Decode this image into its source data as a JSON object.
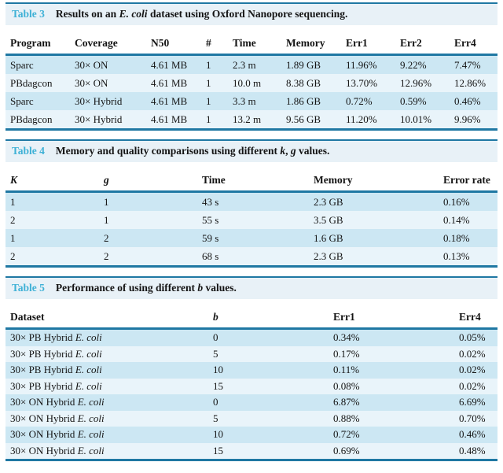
{
  "colors": {
    "accent_cyan": "#3fb1d6",
    "rule_teal": "#1f78a3",
    "row_blue": "#cce7f3",
    "row_pale": "#e9f4fa",
    "caption_band": "#e8f1f7"
  },
  "tables": [
    {
      "label": "Table 3",
      "caption_segments": [
        {
          "t": "Results on an "
        },
        {
          "t": "E. coli",
          "i": true
        },
        {
          "t": " dataset using Oxford Nanopore sequencing."
        }
      ],
      "columns": [
        "Program",
        "Coverage",
        "N50",
        "#",
        "Time",
        "Memory",
        "Err1",
        "Err2",
        "Err4"
      ],
      "rows": [
        [
          "Sparc",
          "30× ON",
          "4.61 MB",
          "1",
          "2.3 m",
          "1.89 GB",
          "11.96%",
          "9.22%",
          "7.47%"
        ],
        [
          "PBdagcon",
          "30× ON",
          "4.61 MB",
          "1",
          "10.0 m",
          "8.38 GB",
          "13.70%",
          "12.96%",
          "12.86%"
        ],
        [
          "Sparc",
          "30× Hybrid",
          "4.61 MB",
          "1",
          "3.3 m",
          "1.86 GB",
          "0.72%",
          "0.59%",
          "0.46%"
        ],
        [
          "PBdagcon",
          "30× Hybrid",
          "4.61 MB",
          "1",
          "13.2 m",
          "9.56 GB",
          "11.20%",
          "10.01%",
          "9.96%"
        ]
      ]
    },
    {
      "label": "Table 4",
      "caption_segments": [
        {
          "t": "Memory and quality comparisons using different "
        },
        {
          "t": "k",
          "i": true
        },
        {
          "t": ", "
        },
        {
          "t": "g",
          "i": true
        },
        {
          "t": " values."
        }
      ],
      "columns": [
        [
          {
            "t": "K",
            "i": true
          }
        ],
        [
          {
            "t": "g",
            "i": true
          }
        ],
        "Time",
        "Memory",
        "Error rate"
      ],
      "rows": [
        [
          "1",
          "1",
          "43 s",
          "2.3 GB",
          "0.16%"
        ],
        [
          "2",
          "1",
          "55 s",
          "3.5 GB",
          "0.14%"
        ],
        [
          "1",
          "2",
          "59 s",
          "1.6 GB",
          "0.18%"
        ],
        [
          "2",
          "2",
          "68 s",
          "2.3 GB",
          "0.13%"
        ]
      ]
    },
    {
      "label": "Table 5",
      "caption_segments": [
        {
          "t": "Performance of using different "
        },
        {
          "t": "b",
          "i": true
        },
        {
          "t": " values."
        }
      ],
      "columns": [
        "Dataset",
        [
          {
            "t": "b",
            "i": true
          }
        ],
        "Err1",
        "Err4"
      ],
      "rows": [
        [
          [
            {
              "t": "30× PB Hybrid "
            },
            {
              "t": "E. coli",
              "i": true
            }
          ],
          "0",
          "0.34%",
          "0.05%"
        ],
        [
          [
            {
              "t": "30× PB Hybrid "
            },
            {
              "t": "E. coli",
              "i": true
            }
          ],
          "5",
          "0.17%",
          "0.02%"
        ],
        [
          [
            {
              "t": "30× PB Hybrid "
            },
            {
              "t": "E. coli",
              "i": true
            }
          ],
          "10",
          "0.11%",
          "0.02%"
        ],
        [
          [
            {
              "t": "30× PB Hybrid "
            },
            {
              "t": "E. coli",
              "i": true
            }
          ],
          "15",
          "0.08%",
          "0.02%"
        ],
        [
          [
            {
              "t": "30× ON Hybrid "
            },
            {
              "t": "E. coli",
              "i": true
            }
          ],
          "0",
          "6.87%",
          "6.69%"
        ],
        [
          [
            {
              "t": "30× ON Hybrid "
            },
            {
              "t": "E. coli",
              "i": true
            }
          ],
          "5",
          "0.88%",
          "0.70%"
        ],
        [
          [
            {
              "t": "30× ON Hybrid "
            },
            {
              "t": "E. coli",
              "i": true
            }
          ],
          "10",
          "0.72%",
          "0.46%"
        ],
        [
          [
            {
              "t": "30× ON Hybrid "
            },
            {
              "t": "E. coli",
              "i": true
            }
          ],
          "15",
          "0.69%",
          "0.48%"
        ]
      ]
    }
  ]
}
